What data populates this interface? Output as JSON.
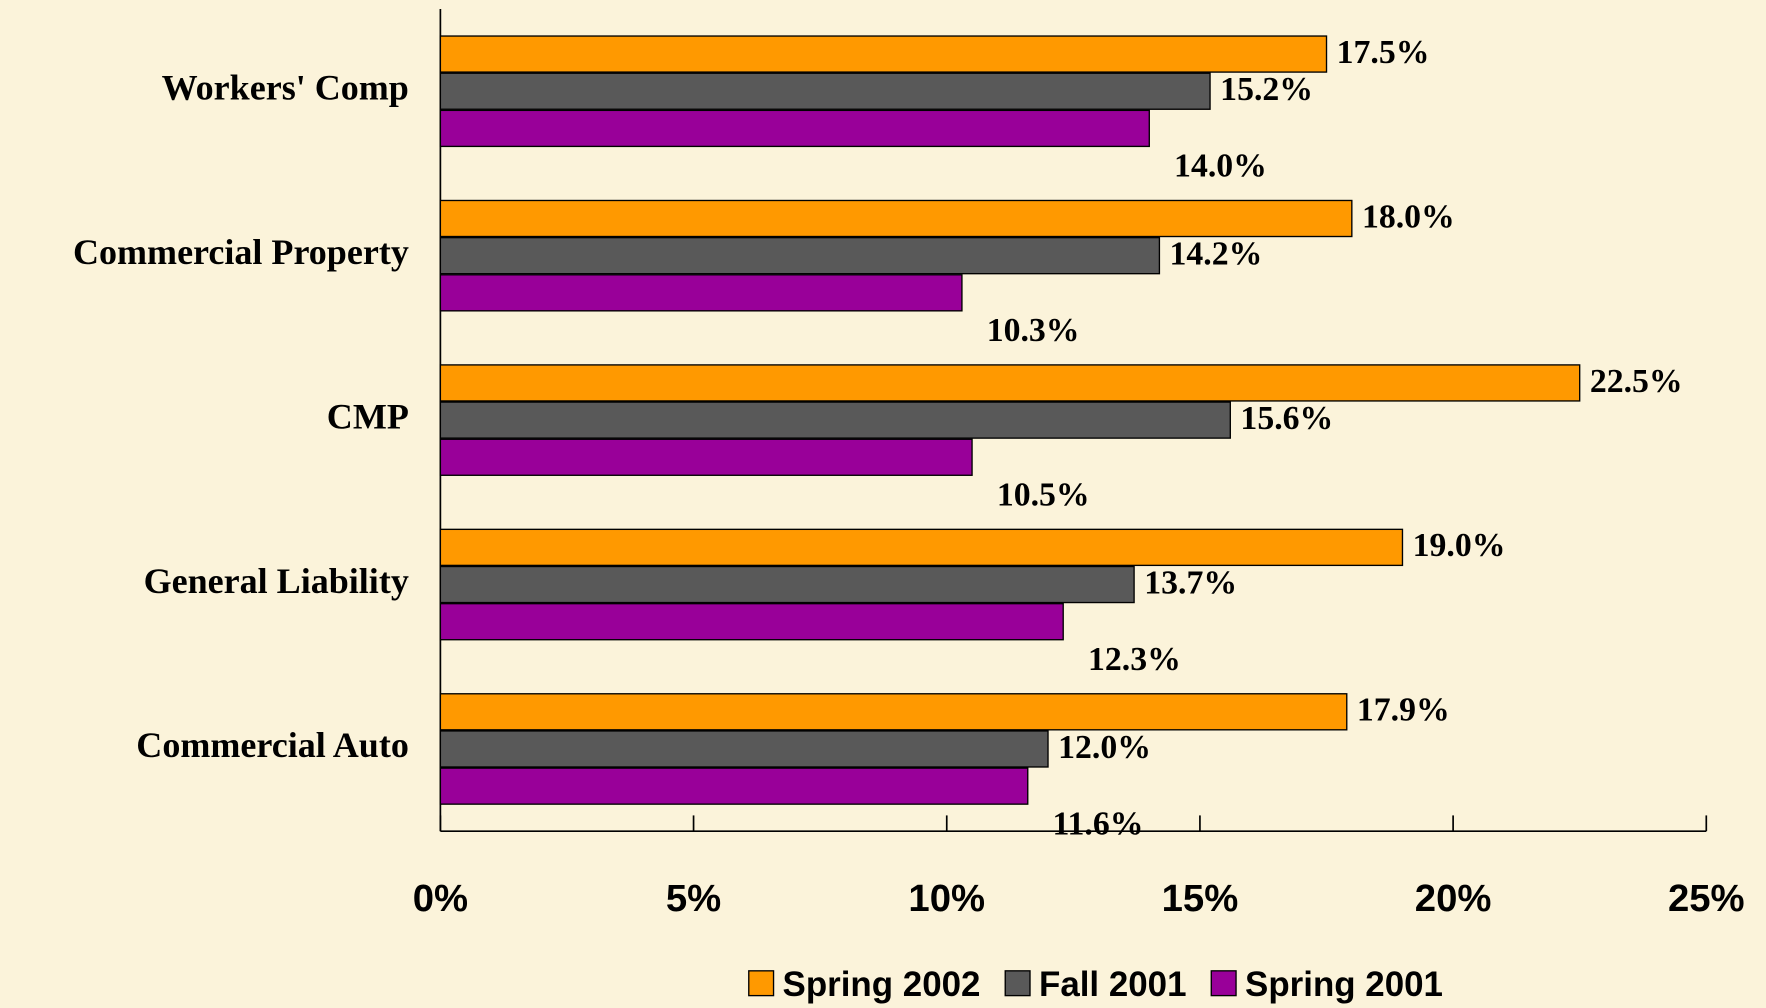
{
  "chart_data": {
    "type": "bar",
    "orientation": "horizontal",
    "categories": [
      "Workers' Comp",
      "Commercial Property",
      "CMP",
      "General Liability",
      "Commercial Auto"
    ],
    "series": [
      {
        "name": "Spring 2002",
        "color": "#ff9900",
        "values": [
          17.5,
          18.0,
          22.5,
          19.0,
          17.9
        ],
        "value_labels": [
          "17.5%",
          "18.0%",
          "22.5%",
          "19.0%",
          "17.9%"
        ]
      },
      {
        "name": "Fall 2001",
        "color": "#595959",
        "values": [
          15.2,
          14.2,
          15.6,
          13.7,
          12.0
        ],
        "value_labels": [
          "15.2%",
          "14.2%",
          "15.6%",
          "13.7%",
          "12.0%"
        ]
      },
      {
        "name": "Spring 2001",
        "color": "#990099",
        "values": [
          14.0,
          10.3,
          10.5,
          12.3,
          11.6
        ],
        "value_labels": [
          "14.0%",
          "10.3%",
          "10.5%",
          "12.3%",
          "11.6%"
        ]
      }
    ],
    "xlim": [
      0,
      25
    ],
    "xticks": [
      {
        "value": 0,
        "label": "0%"
      },
      {
        "value": 5,
        "label": "5%"
      },
      {
        "value": 10,
        "label": "10%"
      },
      {
        "value": 15,
        "label": "15%"
      },
      {
        "value": 20,
        "label": "20%"
      },
      {
        "value": 25,
        "label": "25%"
      }
    ],
    "legend": "bottom"
  }
}
